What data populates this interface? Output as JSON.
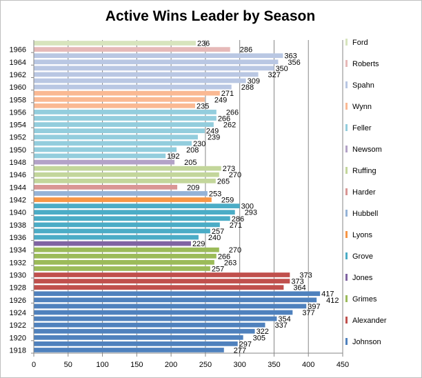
{
  "chart_data": {
    "type": "bar",
    "orientation": "horizontal",
    "title": "Active Wins Leader by Season",
    "xlim": [
      0,
      450
    ],
    "x_ticks": [
      "0",
      "50",
      "100",
      "150",
      "200",
      "250",
      "300",
      "350",
      "400",
      "450"
    ],
    "y_tick_labels": [
      "1918",
      "1920",
      "1922",
      "1924",
      "1926",
      "1928",
      "1930",
      "1932",
      "1934",
      "1936",
      "1938",
      "1940",
      "1942",
      "1944",
      "1946",
      "1948",
      "1950",
      "1952",
      "1954",
      "1956",
      "1958",
      "1960",
      "1962",
      "1964",
      "1966"
    ],
    "grid": "vertical major gridlines",
    "legend_position": "right",
    "categories": [
      "1918",
      "1919",
      "1920",
      "1921",
      "1922",
      "1923",
      "1924",
      "1925",
      "1926",
      "1927",
      "1928",
      "1929",
      "1930",
      "1931",
      "1932",
      "1933",
      "1934",
      "1935",
      "1936",
      "1937",
      "1938",
      "1939",
      "1940",
      "1941",
      "1942",
      "1943",
      "1944",
      "1945",
      "1946",
      "1947",
      "1948",
      "1949",
      "1950",
      "1951",
      "1952",
      "1953",
      "1954",
      "1955",
      "1956",
      "1957",
      "1958",
      "1959",
      "1960",
      "1961",
      "1962",
      "1963",
      "1964",
      "1965",
      "1966",
      "1967"
    ],
    "values": [
      277,
      297,
      305,
      322,
      337,
      354,
      377,
      397,
      412,
      417,
      364,
      373,
      373,
      257,
      263,
      266,
      270,
      229,
      240,
      257,
      271,
      286,
      293,
      300,
      259,
      253,
      209,
      265,
      270,
      273,
      205,
      192,
      208,
      230,
      239,
      249,
      262,
      266,
      266,
      235,
      249,
      271,
      288,
      309,
      327,
      350,
      356,
      363,
      286,
      236
    ],
    "leaders": [
      "Johnson",
      "Johnson",
      "Johnson",
      "Johnson",
      "Johnson",
      "Johnson",
      "Johnson",
      "Johnson",
      "Johnson",
      "Johnson",
      "Alexander",
      "Alexander",
      "Alexander",
      "Grimes",
      "Grimes",
      "Grimes",
      "Grimes",
      "Jones",
      "Grove",
      "Grove",
      "Grove",
      "Grove",
      "Grove",
      "Grove",
      "Lyons",
      "Hubbell",
      "Harder",
      "Ruffing",
      "Ruffing",
      "Ruffing",
      "Newsom",
      "Feller",
      "Feller",
      "Feller",
      "Feller",
      "Feller",
      "Feller",
      "Feller",
      "Feller",
      "Wynn",
      "Wynn",
      "Wynn",
      "Spahn",
      "Spahn",
      "Spahn",
      "Spahn",
      "Spahn",
      "Spahn",
      "Roberts",
      "Ford"
    ],
    "legend": [
      {
        "name": "Ford",
        "color": "#d7e4bd"
      },
      {
        "name": "Roberts",
        "color": "#e6b9b8"
      },
      {
        "name": "Spahn",
        "color": "#b9c7e3"
      },
      {
        "name": "Wynn",
        "color": "#fab993"
      },
      {
        "name": "Feller",
        "color": "#93cddd"
      },
      {
        "name": "Newsom",
        "color": "#b3a2c7"
      },
      {
        "name": "Ruffing",
        "color": "#c3d69b"
      },
      {
        "name": "Harder",
        "color": "#d99694"
      },
      {
        "name": "Hubbell",
        "color": "#95b3d7"
      },
      {
        "name": "Lyons",
        "color": "#f79646"
      },
      {
        "name": "Grove",
        "color": "#4bacc6"
      },
      {
        "name": "Jones",
        "color": "#8064a2"
      },
      {
        "name": "Grimes",
        "color": "#9bbb59"
      },
      {
        "name": "Alexander",
        "color": "#c0504d"
      },
      {
        "name": "Johnson",
        "color": "#4f81bd"
      }
    ]
  }
}
